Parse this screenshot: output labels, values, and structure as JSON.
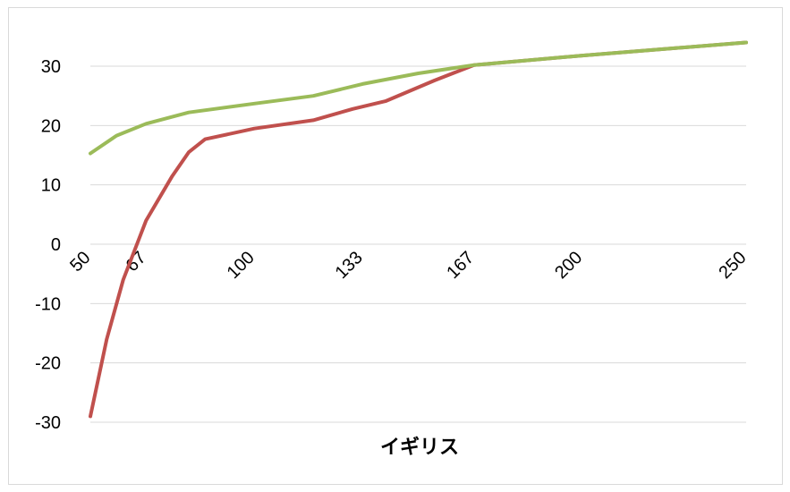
{
  "chart_data": {
    "type": "line",
    "title": "",
    "xlabel": "イギリス",
    "ylabel": "",
    "x": [
      50,
      67,
      100,
      133,
      167,
      200,
      250
    ],
    "x_tick_labels": [
      "50",
      "67",
      "100",
      "133",
      "167",
      "200",
      "250"
    ],
    "ylim": [
      -30,
      35
    ],
    "y_ticks": [
      -30,
      -20,
      -10,
      0,
      10,
      20,
      30
    ],
    "y_tick_labels": [
      "-30",
      "-20",
      "-10",
      "0",
      "10",
      "20",
      "30"
    ],
    "grid": true,
    "legend": "none",
    "series": [
      {
        "color": "#c0504d",
        "points": [
          [
            50,
            -29
          ],
          [
            55,
            -16
          ],
          [
            60,
            -6
          ],
          [
            67,
            4
          ],
          [
            75,
            11.5
          ],
          [
            80,
            15.5
          ],
          [
            85,
            17.7
          ],
          [
            100,
            19.5
          ],
          [
            118,
            20.9
          ],
          [
            130,
            22.8
          ],
          [
            140,
            24.1
          ],
          [
            155,
            27.6
          ],
          [
            167,
            30.2
          ],
          [
            200,
            31.8
          ],
          [
            250,
            34.0
          ]
        ]
      },
      {
        "color": "#9bbb59",
        "points": [
          [
            50,
            15.3
          ],
          [
            58,
            18.3
          ],
          [
            67,
            20.3
          ],
          [
            80,
            22.2
          ],
          [
            100,
            23.7
          ],
          [
            118,
            25.0
          ],
          [
            133,
            27.0
          ],
          [
            150,
            28.8
          ],
          [
            167,
            30.2
          ],
          [
            200,
            31.8
          ],
          [
            250,
            34.0
          ]
        ]
      }
    ]
  }
}
